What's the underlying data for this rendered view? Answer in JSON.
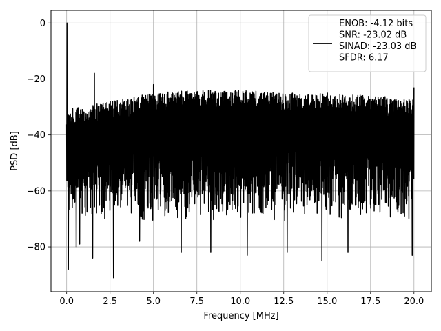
{
  "chart_data": {
    "type": "line",
    "title": "",
    "xlabel": "Frequency [MHz]",
    "ylabel": "PSD [dB]",
    "xlim": [
      -0.9,
      21.0
    ],
    "ylim": [
      -96,
      4.5
    ],
    "xticks": [
      0.0,
      2.5,
      5.0,
      7.5,
      10.0,
      12.5,
      15.0,
      17.5,
      20.0
    ],
    "xtick_labels": [
      "0.0",
      "2.5",
      "5.0",
      "7.5",
      "10.0",
      "12.5",
      "15.0",
      "17.5",
      "20.0"
    ],
    "yticks": [
      0,
      -20,
      -40,
      -60,
      -80
    ],
    "ytick_labels": [
      "0",
      "−20",
      "−40",
      "−60",
      "−80"
    ],
    "grid": true,
    "legend": {
      "position": "top-right",
      "entries": [
        "ENOB: -4.12 bits",
        "SNR: -23.02 dB",
        "SINAD: -23.03 dB",
        "SFDR: 6.17"
      ]
    },
    "series": [
      {
        "color": "#000000",
        "x_range": [
          0.0,
          20.0
        ],
        "noise_band": {
          "upper_envelope": [
            {
              "x": 0.0,
              "y": -31
            },
            {
              "x": 2.5,
              "y": -28
            },
            {
              "x": 5.0,
              "y": -25
            },
            {
              "x": 7.5,
              "y": -24
            },
            {
              "x": 10.0,
              "y": -24
            },
            {
              "x": 12.5,
              "y": -25
            },
            {
              "x": 15.0,
              "y": -25
            },
            {
              "x": 17.5,
              "y": -26
            },
            {
              "x": 20.0,
              "y": -27
            }
          ],
          "lower_envelope_typical": -68,
          "deepest_dip": -91
        },
        "peaks": [
          {
            "x": 0.02,
            "y": 0
          },
          {
            "x": 1.6,
            "y": -18
          },
          {
            "x": 5.0,
            "y": -22
          },
          {
            "x": 20.0,
            "y": -23
          }
        ],
        "dips": [
          {
            "x": 0.1,
            "y": -88
          },
          {
            "x": 0.55,
            "y": -80
          },
          {
            "x": 0.75,
            "y": -79
          },
          {
            "x": 1.5,
            "y": -84
          },
          {
            "x": 2.7,
            "y": -91
          },
          {
            "x": 4.2,
            "y": -78
          },
          {
            "x": 6.6,
            "y": -82
          },
          {
            "x": 8.3,
            "y": -82
          },
          {
            "x": 10.4,
            "y": -83
          },
          {
            "x": 12.7,
            "y": -82
          },
          {
            "x": 14.7,
            "y": -85
          },
          {
            "x": 16.2,
            "y": -82
          },
          {
            "x": 19.9,
            "y": -83
          }
        ]
      }
    ]
  }
}
